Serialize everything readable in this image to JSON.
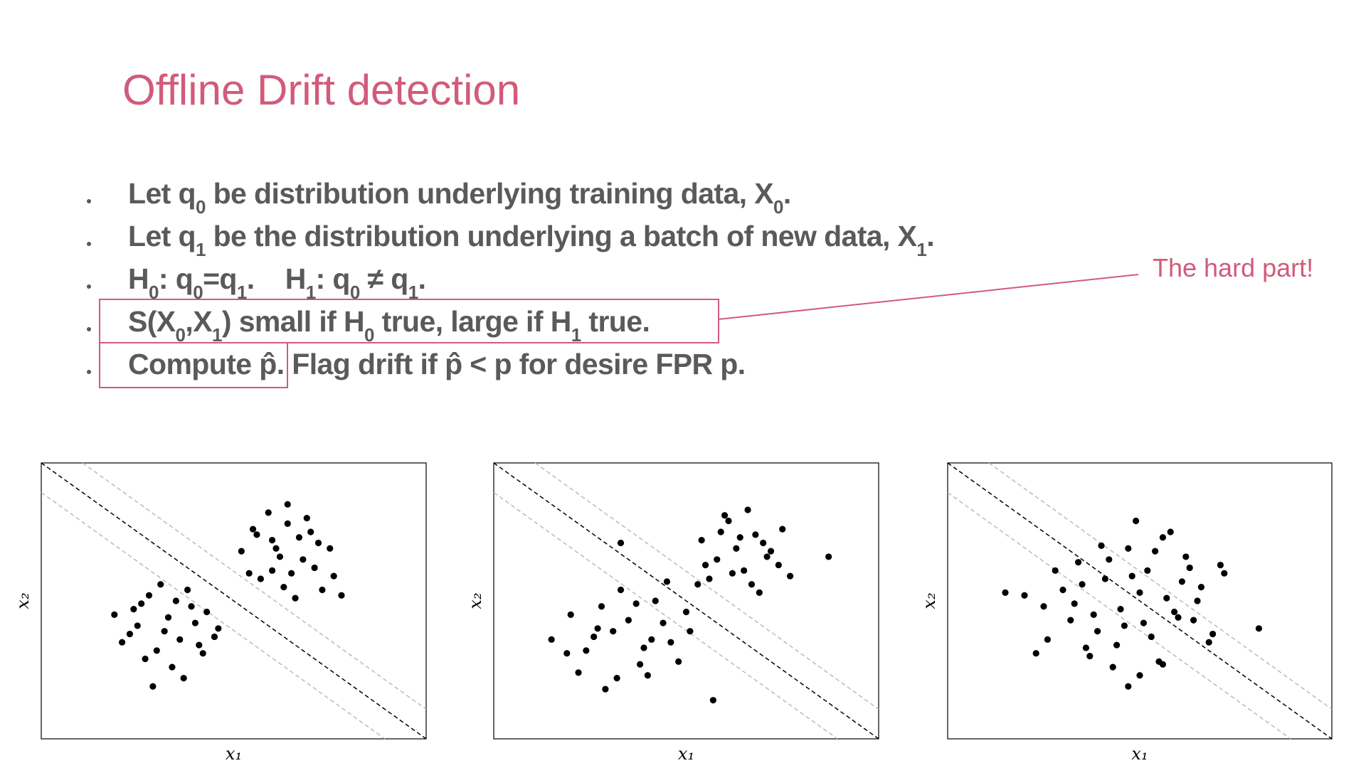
{
  "title": "Offline Drift detection",
  "bullets": [
    [
      "Let q",
      {
        "text": "0",
        "sub": true
      },
      " be distribution underlying training data, X",
      {
        "text": "0",
        "sub": true
      },
      "."
    ],
    [
      "Let q",
      {
        "text": "1",
        "sub": true
      },
      " be the distribution underlying a batch of new data, X",
      {
        "text": "1",
        "sub": true
      },
      "."
    ],
    [
      "H",
      {
        "text": "0",
        "sub": true
      },
      ": q",
      {
        "text": "0",
        "sub": true
      },
      "=q",
      {
        "text": "1",
        "sub": true
      },
      ".    H",
      {
        "text": "1",
        "sub": true
      },
      ": q",
      {
        "text": "0",
        "sub": true
      },
      " ≠ q",
      {
        "text": "1",
        "sub": true
      },
      "."
    ],
    [
      "S(X",
      {
        "text": "0",
        "sub": true
      },
      ",X",
      {
        "text": "1",
        "sub": true
      },
      ") small if H",
      {
        "text": "0",
        "sub": true
      },
      " true, large if H",
      {
        "text": "1",
        "sub": true
      },
      " true."
    ],
    [
      "Compute p̂.",
      " Flag drift if p̂ < p for desire FPR p."
    ]
  ],
  "annotation": "The hard part!",
  "chart_data": [
    {
      "type": "scatter",
      "xlabel": "x₁",
      "ylabel": "x₂",
      "xlim": [
        0,
        10
      ],
      "ylim": [
        0,
        10
      ],
      "color": "#000000",
      "x": [
        1.9,
        2.3,
        2.6,
        3.0,
        3.3,
        3.6,
        3.9,
        4.2,
        2.1,
        2.8,
        3.4,
        4.0,
        4.5,
        2.5,
        3.1,
        3.7,
        4.3,
        2.7,
        3.5,
        4.1,
        2.4,
        3.2,
        3.8,
        4.6,
        2.9,
        5.2,
        5.6,
        6.0,
        6.4,
        6.8,
        7.2,
        7.6,
        5.4,
        5.9,
        6.3,
        6.7,
        7.1,
        7.5,
        5.7,
        6.1,
        6.5,
        6.9,
        7.3,
        5.5,
        6.2,
        6.6,
        7.0,
        7.8,
        6.0,
        6.4
      ],
      "values": [
        4.5,
        3.8,
        4.9,
        3.2,
        4.4,
        3.6,
        4.8,
        3.1,
        3.5,
        5.2,
        2.6,
        4.2,
        3.7,
        4.1,
        5.6,
        2.2,
        4.6,
        2.9,
        5.0,
        3.4,
        4.7,
        3.9,
        5.4,
        4.0,
        1.9,
        6.8,
        7.4,
        6.1,
        7.8,
        6.5,
        7.1,
        5.9,
        6.0,
        8.2,
        5.5,
        7.3,
        6.2,
        6.9,
        5.8,
        6.9,
        6.0,
        8.0,
        5.4,
        7.6,
        6.6,
        5.1,
        7.5,
        5.2,
        7.2,
        8.5
      ]
    },
    {
      "type": "scatter",
      "xlabel": "x₁",
      "ylabel": "x₂",
      "xlim": [
        0,
        10
      ],
      "ylim": [
        0,
        10
      ],
      "color": "#000000",
      "x": [
        1.5,
        2.0,
        2.4,
        2.8,
        3.1,
        3.5,
        3.8,
        4.2,
        4.6,
        5.0,
        2.2,
        2.7,
        3.3,
        3.9,
        4.4,
        4.8,
        5.3,
        1.9,
        2.6,
        3.2,
        3.7,
        4.1,
        4.5,
        5.1,
        2.9,
        5.4,
        5.8,
        6.1,
        6.5,
        6.8,
        7.2,
        7.5,
        5.6,
        6.0,
        6.3,
        6.7,
        7.0,
        7.4,
        5.9,
        6.2,
        6.6,
        6.9,
        5.5,
        6.4,
        7.1,
        7.7,
        4.0,
        8.7,
        3.3,
        5.7
      ],
      "values": [
        3.6,
        4.5,
        3.2,
        4.8,
        3.9,
        4.3,
        2.7,
        5.0,
        3.5,
        4.6,
        2.4,
        4.0,
        5.4,
        3.3,
        4.2,
        2.8,
        5.6,
        3.1,
        3.7,
        2.2,
        4.9,
        3.6,
        5.7,
        3.9,
        1.8,
        7.2,
        6.5,
        7.9,
        6.1,
        7.4,
        6.8,
        7.6,
        5.8,
        8.1,
        6.9,
        5.6,
        7.1,
        6.3,
        7.5,
        6.0,
        8.3,
        5.3,
        6.3,
        7.3,
        6.6,
        5.9,
        2.3,
        6.6,
        7.1,
        1.4
      ]
    },
    {
      "type": "scatter",
      "xlabel": "x₁",
      "ylabel": "x₂",
      "xlim": [
        0,
        10
      ],
      "ylim": [
        0,
        10
      ],
      "color": "#000000",
      "x": [
        2.0,
        2.5,
        2.8,
        3.2,
        3.5,
        3.9,
        4.2,
        4.5,
        4.8,
        5.1,
        5.4,
        5.7,
        6.0,
        6.3,
        6.6,
        6.9,
        7.2,
        2.6,
        3.0,
        3.4,
        3.8,
        4.1,
        4.4,
        4.7,
        5.0,
        5.3,
        5.6,
        5.9,
        6.2,
        6.5,
        6.8,
        7.1,
        3.3,
        3.7,
        4.0,
        4.6,
        5.2,
        5.5,
        5.8,
        6.1,
        4.3,
        4.9,
        6.4,
        3.6,
        5.0,
        2.3,
        8.1,
        1.5,
        4.7,
        5.6
      ],
      "values": [
        5.2,
        4.8,
        6.1,
        4.3,
        5.6,
        3.9,
        6.5,
        4.7,
        5.9,
        4.2,
        6.8,
        5.1,
        4.4,
        6.2,
        5.5,
        3.8,
        6.0,
        3.6,
        5.4,
        6.4,
        4.5,
        5.8,
        3.4,
        6.9,
        5.3,
        3.7,
        7.3,
        4.6,
        6.6,
        5.0,
        3.5,
        6.3,
        4.9,
        3.0,
        7.0,
        4.1,
        6.1,
        2.8,
        7.5,
        5.7,
        2.6,
        7.9,
        4.3,
        3.3,
        2.3,
        3.1,
        4.0,
        5.3,
        1.9,
        2.7
      ]
    }
  ]
}
